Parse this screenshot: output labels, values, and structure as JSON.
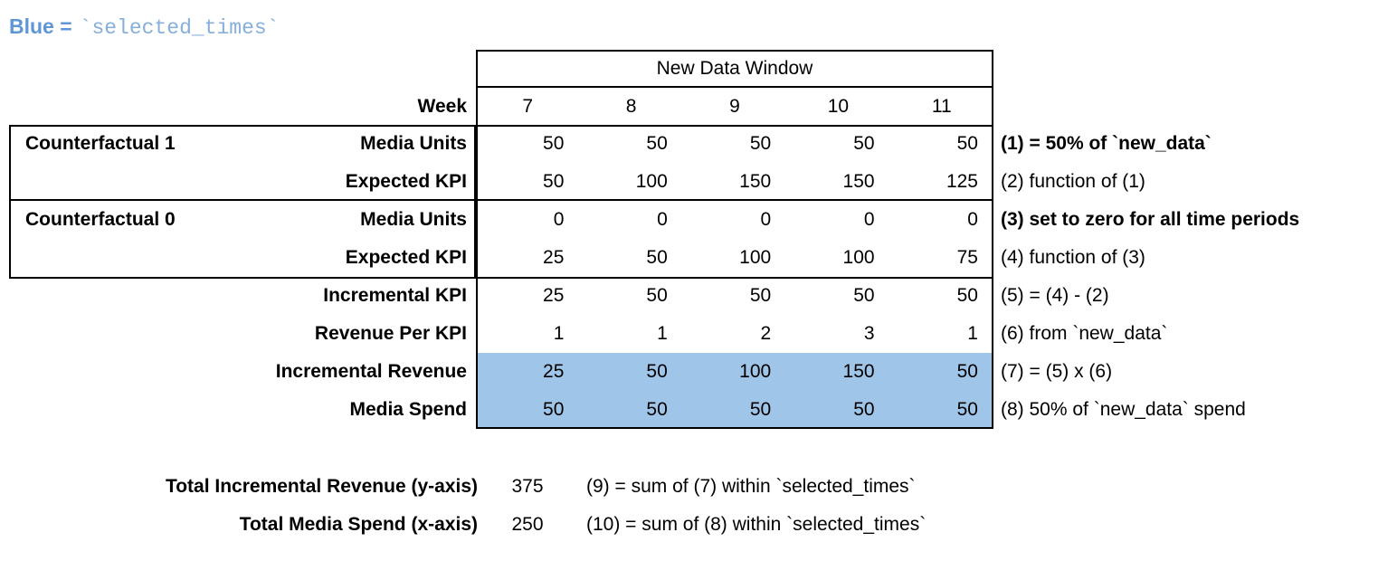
{
  "caption": {
    "prefix": "Blue =",
    "code": "`selected_times`",
    "prefix_color": "#5f96d6",
    "code_color": "#87afdc"
  },
  "table": {
    "window_title": "New Data Window",
    "week_label": "Week",
    "weeks": [
      "7",
      "8",
      "9",
      "10",
      "11"
    ],
    "highlight_color": "#9fc5e8",
    "border_color": "#000000",
    "groups": [
      {
        "label": "Counterfactual 1"
      },
      {
        "label": "Counterfactual 0"
      }
    ],
    "rows": [
      {
        "label": "Media Units",
        "values": [
          "50",
          "50",
          "50",
          "50",
          "50"
        ],
        "annotation": "(1) = 50% of `new_data`",
        "annotation_bold": true,
        "highlight": false
      },
      {
        "label": "Expected KPI",
        "values": [
          "50",
          "100",
          "150",
          "150",
          "125"
        ],
        "annotation": "(2) function of (1)",
        "annotation_bold": false,
        "highlight": false
      },
      {
        "label": "Media Units",
        "values": [
          "0",
          "0",
          "0",
          "0",
          "0"
        ],
        "annotation": "(3) set to zero for all time periods",
        "annotation_bold": true,
        "highlight": false
      },
      {
        "label": "Expected KPI",
        "values": [
          "25",
          "50",
          "100",
          "100",
          "75"
        ],
        "annotation": "(4) function of (3)",
        "annotation_bold": false,
        "highlight": false
      },
      {
        "label": "Incremental KPI",
        "values": [
          "25",
          "50",
          "50",
          "50",
          "50"
        ],
        "annotation": "(5) = (4) - (2)",
        "annotation_bold": false,
        "highlight": false
      },
      {
        "label": "Revenue Per KPI",
        "values": [
          "1",
          "1",
          "2",
          "3",
          "1"
        ],
        "annotation": "(6) from `new_data`",
        "annotation_bold": false,
        "highlight": false
      },
      {
        "label": "Incremental Revenue",
        "values": [
          "25",
          "50",
          "100",
          "150",
          "50"
        ],
        "annotation": "(7) = (5) x (6)",
        "annotation_bold": false,
        "highlight": true
      },
      {
        "label": "Media Spend",
        "values": [
          "50",
          "50",
          "50",
          "50",
          "50"
        ],
        "annotation": "(8) 50% of `new_data` spend",
        "annotation_bold": false,
        "highlight": true
      }
    ]
  },
  "totals": [
    {
      "label": "Total Incremental Revenue (y-axis)",
      "value": "375",
      "annotation": "(9) = sum of (7) within `selected_times`"
    },
    {
      "label": "Total Media Spend (x-axis)",
      "value": "250",
      "annotation": "(10) = sum of (8) within `selected_times`"
    }
  ]
}
